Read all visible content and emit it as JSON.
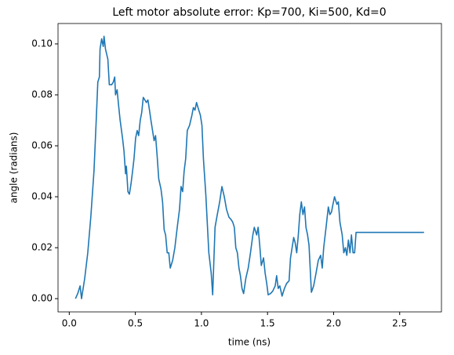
{
  "chart_data": {
    "type": "line",
    "title": "Left motor absolute error: Kp=700, Ki=500, Kd=0",
    "x_label": "time (ns)",
    "y_label": "angle (radians)",
    "xlim": [
      -0.085,
      2.816
    ],
    "ylim": [
      -0.0052,
      0.108
    ],
    "xticks": [
      {
        "value": 0,
        "label": "0.0"
      },
      {
        "value": 0.5,
        "label": "0.5"
      },
      {
        "value": 1,
        "label": "1.0"
      },
      {
        "value": 1.5,
        "label": "1.5"
      },
      {
        "value": 2,
        "label": "2.0"
      },
      {
        "value": 2.5,
        "label": "2.5"
      }
    ],
    "yticks": [
      {
        "value": 0,
        "label": "0.00"
      },
      {
        "value": 0.02,
        "label": "0.02"
      },
      {
        "value": 0.04,
        "label": "0.04"
      },
      {
        "value": 0.06,
        "label": "0.06"
      },
      {
        "value": 0.08,
        "label": "0.08"
      },
      {
        "value": 0.1,
        "label": "0.10"
      }
    ],
    "grid": false,
    "x": [
      0.047,
      0.064,
      0.082,
      0.093,
      0.117,
      0.14,
      0.163,
      0.187,
      0.204,
      0.216,
      0.228,
      0.233,
      0.245,
      0.257,
      0.263,
      0.274,
      0.292,
      0.303,
      0.321,
      0.333,
      0.344,
      0.35,
      0.362,
      0.373,
      0.385,
      0.403,
      0.414,
      0.426,
      0.432,
      0.444,
      0.455,
      0.467,
      0.479,
      0.49,
      0.502,
      0.514,
      0.525,
      0.537,
      0.548,
      0.56,
      0.572,
      0.583,
      0.595,
      0.607,
      0.618,
      0.63,
      0.642,
      0.653,
      0.665,
      0.677,
      0.694,
      0.706,
      0.718,
      0.729,
      0.741,
      0.753,
      0.764,
      0.782,
      0.799,
      0.817,
      0.834,
      0.846,
      0.858,
      0.869,
      0.881,
      0.893,
      0.91,
      0.928,
      0.939,
      0.951,
      0.963,
      0.974,
      0.992,
      1.004,
      1.015,
      1.033,
      1.044,
      1.056,
      1.074,
      1.085,
      1.103,
      1.12,
      1.138,
      1.155,
      1.173,
      1.19,
      1.208,
      1.225,
      1.237,
      1.249,
      1.26,
      1.272,
      1.284,
      1.295,
      1.307,
      1.319,
      1.336,
      1.354,
      1.371,
      1.389,
      1.4,
      1.418,
      1.429,
      1.441,
      1.453,
      1.47,
      1.482,
      1.494,
      1.505,
      1.523,
      1.54,
      1.558,
      1.569,
      1.581,
      1.593,
      1.61,
      1.628,
      1.645,
      1.663,
      1.674,
      1.686,
      1.698,
      1.709,
      1.721,
      1.733,
      1.744,
      1.756,
      1.768,
      1.78,
      1.791,
      1.803,
      1.814,
      1.832,
      1.849,
      1.867,
      1.884,
      1.902,
      1.914,
      1.925,
      1.943,
      1.96,
      1.972,
      1.984,
      1.995,
      2.007,
      2.025,
      2.036,
      2.048,
      2.065,
      2.077,
      2.089,
      2.1,
      2.112,
      2.124,
      2.135,
      2.147,
      2.159,
      2.17,
      2.684
    ],
    "series": [
      {
        "color": "#1f77b4",
        "values": [
          0,
          0.002,
          0.005,
          0,
          0.008,
          0.018,
          0.032,
          0.05,
          0.07,
          0.085,
          0.087,
          0.098,
          0.102,
          0.099,
          0.103,
          0.098,
          0.094,
          0.084,
          0.084,
          0.085,
          0.087,
          0.08,
          0.082,
          0.076,
          0.07,
          0.063,
          0.058,
          0.049,
          0.052,
          0.042,
          0.041,
          0.045,
          0.05,
          0.055,
          0.063,
          0.066,
          0.064,
          0.07,
          0.073,
          0.079,
          0.078,
          0.077,
          0.078,
          0.074,
          0.07,
          0.066,
          0.062,
          0.064,
          0.056,
          0.047,
          0.043,
          0.038,
          0.027,
          0.025,
          0.018,
          0.018,
          0.012,
          0.015,
          0.02,
          0.028,
          0.035,
          0.044,
          0.042,
          0.05,
          0.055,
          0.066,
          0.068,
          0.072,
          0.075,
          0.074,
          0.077,
          0.075,
          0.072,
          0.068,
          0.055,
          0.041,
          0.03,
          0.018,
          0.01,
          0.0015,
          0.028,
          0.033,
          0.038,
          0.044,
          0.04,
          0.035,
          0.032,
          0.031,
          0.03,
          0.028,
          0.02,
          0.018,
          0.012,
          0.009,
          0.004,
          0.002,
          0.008,
          0.012,
          0.018,
          0.025,
          0.028,
          0.025,
          0.028,
          0.021,
          0.013,
          0.016,
          0.01,
          0.006,
          0.0015,
          0.002,
          0.003,
          0.005,
          0.009,
          0.004,
          0.005,
          0.001,
          0.004,
          0.006,
          0.007,
          0.016,
          0.02,
          0.024,
          0.022,
          0.018,
          0.025,
          0.033,
          0.038,
          0.033,
          0.036,
          0.028,
          0.025,
          0.021,
          0.0025,
          0.005,
          0.01,
          0.015,
          0.017,
          0.012,
          0.02,
          0.028,
          0.036,
          0.033,
          0.034,
          0.037,
          0.04,
          0.037,
          0.038,
          0.03,
          0.025,
          0.018,
          0.02,
          0.017,
          0.023,
          0.018,
          0.025,
          0.018,
          0.018,
          0.026,
          0.026
        ]
      }
    ]
  }
}
